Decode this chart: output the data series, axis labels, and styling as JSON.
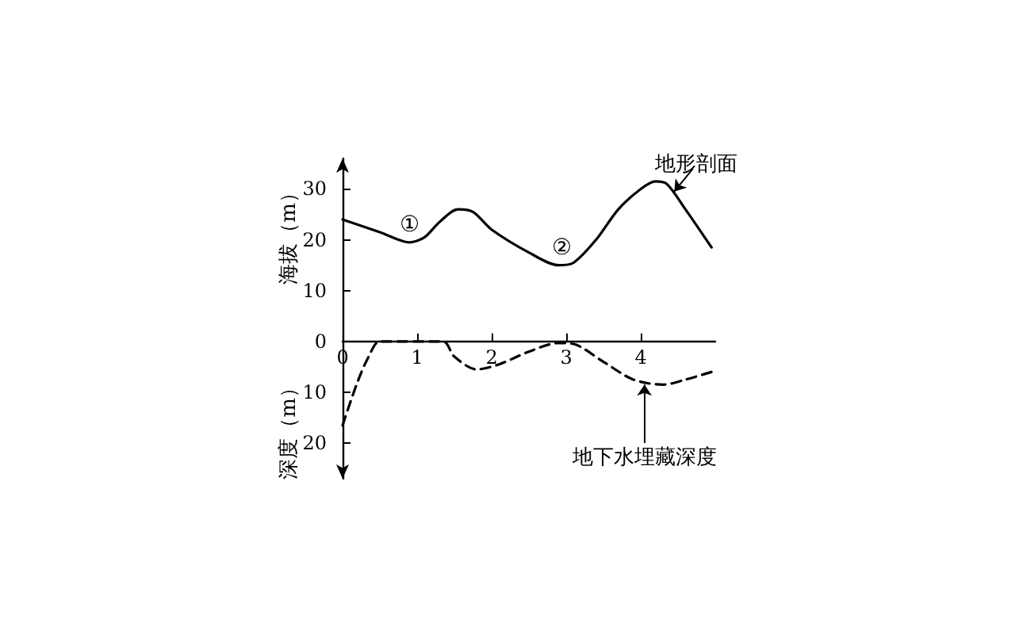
{
  "chart_data": {
    "type": "line",
    "ylabel": "海拔（m）",
    "annotations": [
      "深度（m）",
      {
        "text": "①",
        "x": 0.9,
        "y": 19.5
      },
      {
        "text": "②",
        "x": 2.95,
        "y": 15
      },
      {
        "text": "地形剖面",
        "x": 4.45,
        "y": 29.5
      },
      {
        "text": "地下水埋藏深度",
        "x": 4.05,
        "y": -8.5
      }
    ],
    "xlim": [
      0,
      5
    ],
    "xticks": [
      0,
      1,
      2,
      3,
      4
    ],
    "ylim": [
      -27,
      36
    ],
    "yticks": [
      {
        "value": -20,
        "label": "20"
      },
      {
        "value": -10,
        "label": "10"
      },
      0,
      10,
      20,
      30
    ],
    "series": [
      {
        "color": "#000000",
        "line_style": "solid",
        "x": [
          0,
          0.5,
          0.9,
          1.1,
          1.3,
          1.55,
          1.75,
          2.0,
          2.5,
          2.9,
          3.1,
          3.4,
          3.7,
          4.0,
          4.2,
          4.35,
          4.6,
          4.95
        ],
        "values": [
          24,
          21.5,
          19.5,
          20.5,
          23.5,
          26,
          25.5,
          22,
          17.5,
          15,
          15.5,
          20,
          26,
          30,
          31.5,
          31,
          26,
          18.5
        ]
      },
      {
        "color": "#000000",
        "line_style": "dashed",
        "x": [
          0,
          0.2,
          0.35,
          0.5,
          1.35,
          1.5,
          1.8,
          2.1,
          2.5,
          2.9,
          3.1,
          3.5,
          3.9,
          4.3,
          4.6,
          4.95
        ],
        "values": [
          -16.5,
          -8,
          -3,
          0,
          0,
          -3,
          -5.5,
          -4.5,
          -2,
          -0.3,
          -0.5,
          -4,
          -7.5,
          -8.5,
          -7.5,
          -6
        ]
      }
    ],
    "marker": "none"
  }
}
